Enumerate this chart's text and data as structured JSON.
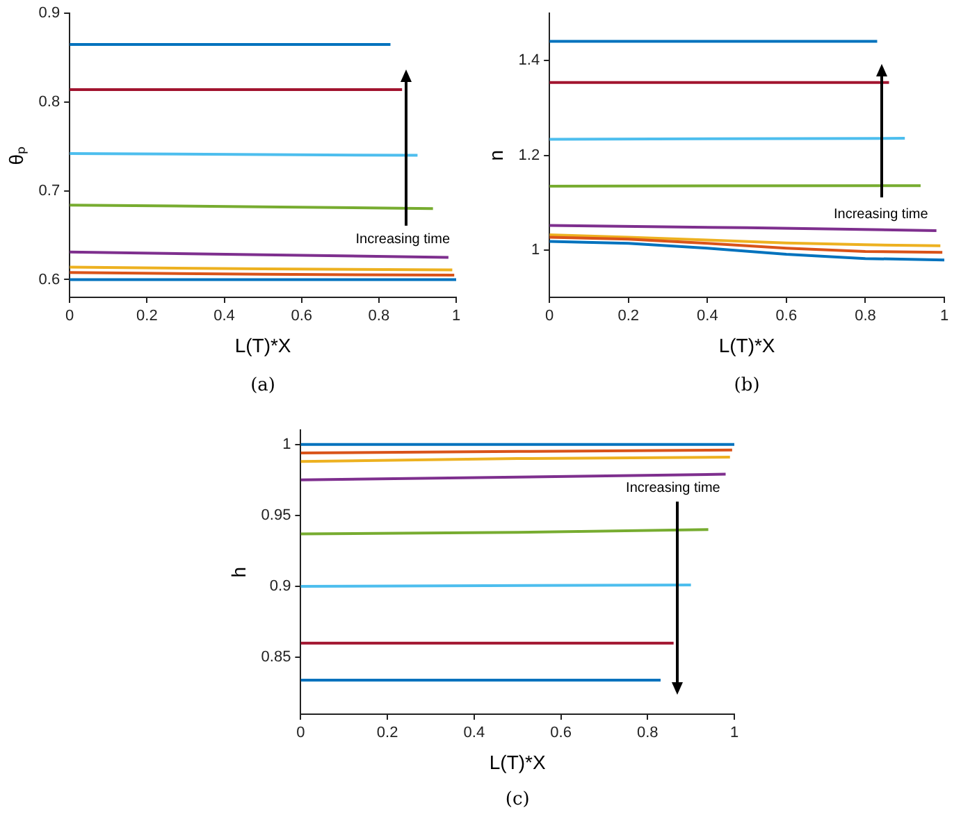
{
  "chart_data": [
    {
      "type": "line",
      "xlabel": "L(T)*X",
      "ylabel": "θₚ",
      "xlim": [
        0,
        1
      ],
      "xticks": [
        0,
        0.2,
        0.4,
        0.6,
        0.8,
        1
      ],
      "ylim": [
        0.58,
        0.9
      ],
      "yticks": [
        0.6,
        0.7,
        0.8,
        0.9
      ],
      "legend": false,
      "annotations": [
        "Increasing time",
        "(a)"
      ],
      "series": [
        {
          "color": "#0072bd",
          "x": [
            0,
            1
          ],
          "values": [
            0.6,
            0.6
          ]
        },
        {
          "color": "#d95319",
          "x": [
            0,
            0.5,
            0.995
          ],
          "values": [
            0.608,
            0.606,
            0.605
          ]
        },
        {
          "color": "#edb120",
          "x": [
            0,
            0.5,
            0.99
          ],
          "values": [
            0.614,
            0.612,
            0.611
          ]
        },
        {
          "color": "#7e2f8e",
          "x": [
            0,
            0.5,
            0.98
          ],
          "values": [
            0.631,
            0.628,
            0.625
          ]
        },
        {
          "color": "#77ac30",
          "x": [
            0,
            0.5,
            0.94
          ],
          "values": [
            0.684,
            0.682,
            0.68
          ]
        },
        {
          "color": "#4dbeee",
          "x": [
            0,
            0.9
          ],
          "values": [
            0.742,
            0.74
          ]
        },
        {
          "color": "#a2142f",
          "x": [
            0,
            0.86
          ],
          "values": [
            0.814,
            0.814
          ]
        },
        {
          "color": "#0072bd",
          "x": [
            0,
            0.83
          ],
          "values": [
            0.865,
            0.865
          ]
        }
      ]
    },
    {
      "type": "line",
      "xlabel": "L(T)*X",
      "ylabel": "n",
      "xlim": [
        0,
        1
      ],
      "xticks": [
        0,
        0.2,
        0.4,
        0.6,
        0.8,
        1
      ],
      "ylim": [
        0.9,
        1.5
      ],
      "yticks": [
        1,
        1.2,
        1.4
      ],
      "legend": false,
      "annotations": [
        "Increasing time",
        "(b)"
      ],
      "series": [
        {
          "color": "#0072bd",
          "x": [
            0,
            0.2,
            0.4,
            0.6,
            0.8,
            1
          ],
          "values": [
            1.018,
            1.014,
            1.004,
            0.991,
            0.982,
            0.979
          ]
        },
        {
          "color": "#d95319",
          "x": [
            0,
            0.2,
            0.4,
            0.6,
            0.8,
            0.995
          ],
          "values": [
            1.027,
            1.023,
            1.014,
            1.004,
            0.997,
            0.995
          ]
        },
        {
          "color": "#edb120",
          "x": [
            0,
            0.2,
            0.4,
            0.6,
            0.8,
            0.99
          ],
          "values": [
            1.032,
            1.027,
            1.021,
            1.015,
            1.011,
            1.009
          ]
        },
        {
          "color": "#7e2f8e",
          "x": [
            0,
            0.5,
            0.98
          ],
          "values": [
            1.052,
            1.047,
            1.041
          ]
        },
        {
          "color": "#77ac30",
          "x": [
            0,
            0.94
          ],
          "values": [
            1.135,
            1.136
          ]
        },
        {
          "color": "#4dbeee",
          "x": [
            0,
            0.9
          ],
          "values": [
            1.234,
            1.236
          ]
        },
        {
          "color": "#a2142f",
          "x": [
            0,
            0.86
          ],
          "values": [
            1.354,
            1.354
          ]
        },
        {
          "color": "#0072bd",
          "x": [
            0,
            0.83
          ],
          "values": [
            1.441,
            1.441
          ]
        }
      ]
    },
    {
      "type": "line",
      "xlabel": "L(T)*X",
      "ylabel": "h",
      "xlim": [
        0,
        1
      ],
      "xticks": [
        0,
        0.2,
        0.4,
        0.6,
        0.8,
        1
      ],
      "ylim": [
        0.81,
        1.01
      ],
      "yticks": [
        0.85,
        0.9,
        0.95,
        1
      ],
      "legend": false,
      "annotations": [
        "Increasing time",
        "(c)"
      ],
      "series": [
        {
          "color": "#0072bd",
          "x": [
            0,
            1
          ],
          "values": [
            1,
            1
          ]
        },
        {
          "color": "#d95319",
          "x": [
            0,
            0.5,
            0.995
          ],
          "values": [
            0.994,
            0.995,
            0.996
          ]
        },
        {
          "color": "#edb120",
          "x": [
            0,
            0.5,
            0.99
          ],
          "values": [
            0.988,
            0.99,
            0.991
          ]
        },
        {
          "color": "#7e2f8e",
          "x": [
            0,
            0.5,
            0.98
          ],
          "values": [
            0.975,
            0.977,
            0.979
          ]
        },
        {
          "color": "#77ac30",
          "x": [
            0,
            0.5,
            0.94
          ],
          "values": [
            0.937,
            0.938,
            0.94
          ]
        },
        {
          "color": "#4dbeee",
          "x": [
            0,
            0.9
          ],
          "values": [
            0.9,
            0.901
          ]
        },
        {
          "color": "#a2142f",
          "x": [
            0,
            0.86
          ],
          "values": [
            0.86,
            0.86
          ]
        },
        {
          "color": "#0072bd",
          "x": [
            0,
            0.83
          ],
          "values": [
            0.834,
            0.834
          ]
        }
      ]
    }
  ]
}
